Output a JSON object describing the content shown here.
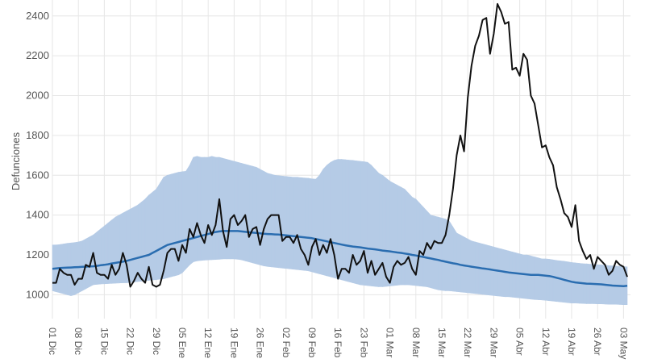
{
  "chart_data": {
    "type": "line",
    "y_label": "Defunciones",
    "categories": [
      "01 Dic",
      null,
      null,
      null,
      null,
      null,
      null,
      "08 Dic",
      null,
      null,
      null,
      null,
      null,
      null,
      "15 Dic",
      null,
      null,
      null,
      null,
      null,
      null,
      "22 Dic",
      null,
      null,
      null,
      null,
      null,
      null,
      "29 Dic",
      null,
      null,
      null,
      null,
      null,
      null,
      "05 Ene",
      null,
      null,
      null,
      null,
      null,
      null,
      "12 Ene",
      null,
      null,
      null,
      null,
      null,
      null,
      "19 Ene",
      null,
      null,
      null,
      null,
      null,
      null,
      "26 Ene",
      null,
      null,
      null,
      null,
      null,
      null,
      "02 Feb",
      null,
      null,
      null,
      null,
      null,
      null,
      "09 Feb",
      null,
      null,
      null,
      null,
      null,
      null,
      "16 Feb",
      null,
      null,
      null,
      null,
      null,
      null,
      "23 Feb",
      null,
      null,
      null,
      null,
      null,
      null,
      "01 Mar",
      null,
      null,
      null,
      null,
      null,
      null,
      "08 Mar",
      null,
      null,
      null,
      null,
      null,
      null,
      "15 Mar",
      null,
      null,
      null,
      null,
      null,
      null,
      "22 Mar",
      null,
      null,
      null,
      null,
      null,
      null,
      "29 Mar",
      null,
      null,
      null,
      null,
      null,
      null,
      "05 Abr",
      null,
      null,
      null,
      null,
      null,
      null,
      "12 Abr",
      null,
      null,
      null,
      null,
      null,
      null,
      "19 Abr",
      null,
      null,
      null,
      null,
      null,
      null,
      "26 Abr",
      null,
      null,
      null,
      null,
      null,
      null,
      "03 May",
      null
    ],
    "band": {
      "color": "#b5cbe6",
      "upper": [
        1250,
        1250,
        1252,
        1255,
        1258,
        1260,
        1262,
        1265,
        1270,
        1280,
        1290,
        1300,
        1315,
        1330,
        1345,
        1360,
        1375,
        1390,
        1400,
        1410,
        1420,
        1430,
        1440,
        1450,
        1465,
        1480,
        1500,
        1515,
        1530,
        1560,
        1590,
        1600,
        1605,
        1610,
        1615,
        1618,
        1620,
        1650,
        1690,
        1695,
        1690,
        1690,
        1690,
        1695,
        1690,
        1690,
        1685,
        1680,
        1675,
        1670,
        1665,
        1660,
        1655,
        1650,
        1645,
        1640,
        1630,
        1620,
        1610,
        1605,
        1600,
        1598,
        1596,
        1594,
        1592,
        1590,
        1590,
        1588,
        1586,
        1585,
        1582,
        1580,
        1600,
        1630,
        1650,
        1665,
        1675,
        1680,
        1680,
        1678,
        1676,
        1675,
        1672,
        1670,
        1668,
        1665,
        1650,
        1630,
        1610,
        1600,
        1585,
        1570,
        1560,
        1550,
        1540,
        1530,
        1510,
        1490,
        1480,
        1460,
        1440,
        1420,
        1400,
        1395,
        1390,
        1385,
        1380,
        1370,
        1340,
        1310,
        1300,
        1290,
        1280,
        1270,
        1265,
        1260,
        1255,
        1250,
        1245,
        1240,
        1235,
        1230,
        1225,
        1220,
        1215,
        1210,
        1205,
        1200,
        1200,
        1195,
        1190,
        1185,
        1180,
        1180,
        1178,
        1175,
        1172,
        1170,
        1168,
        1165,
        1162,
        1160,
        1158,
        1156,
        1155,
        1153,
        1152,
        1150,
        1150,
        1148,
        1146,
        1145,
        1144,
        1142,
        1141,
        1140
      ],
      "lower": [
        1020,
        1015,
        1010,
        1005,
        1000,
        995,
        1000,
        1010,
        1020,
        1030,
        1040,
        1050,
        1052,
        1054,
        1055,
        1056,
        1057,
        1058,
        1059,
        1060,
        1060,
        1062,
        1064,
        1066,
        1068,
        1070,
        1072,
        1074,
        1076,
        1078,
        1080,
        1085,
        1090,
        1095,
        1100,
        1110,
        1130,
        1150,
        1165,
        1170,
        1172,
        1174,
        1175,
        1176,
        1177,
        1178,
        1180,
        1180,
        1180,
        1180,
        1178,
        1175,
        1170,
        1165,
        1160,
        1155,
        1150,
        1145,
        1142,
        1140,
        1138,
        1136,
        1134,
        1132,
        1130,
        1128,
        1126,
        1124,
        1122,
        1120,
        1115,
        1110,
        1105,
        1100,
        1095,
        1090,
        1085,
        1080,
        1075,
        1070,
        1065,
        1060,
        1055,
        1050,
        1048,
        1046,
        1044,
        1042,
        1040,
        1040,
        1042,
        1044,
        1046,
        1048,
        1050,
        1050,
        1050,
        1048,
        1046,
        1044,
        1042,
        1040,
        1035,
        1030,
        1025,
        1022,
        1020,
        1020,
        1018,
        1016,
        1014,
        1012,
        1010,
        1008,
        1006,
        1004,
        1002,
        1000,
        998,
        996,
        994,
        992,
        990,
        990,
        988,
        986,
        984,
        982,
        980,
        978,
        976,
        975,
        974,
        972,
        970,
        968,
        966,
        964,
        962,
        960,
        958,
        958,
        957,
        956,
        955,
        955,
        955,
        954,
        954,
        953,
        952,
        952,
        952,
        951,
        950,
        950
      ]
    },
    "series": [
      {
        "color": "#2a6db0",
        "values": [
          1130,
          1132,
          1134,
          1135,
          1136,
          1137,
          1138,
          1139,
          1140,
          1141,
          1142,
          1143,
          1145,
          1148,
          1150,
          1153,
          1157,
          1160,
          1163,
          1166,
          1170,
          1175,
          1180,
          1185,
          1190,
          1195,
          1200,
          1210,
          1220,
          1230,
          1240,
          1250,
          1255,
          1260,
          1265,
          1270,
          1275,
          1280,
          1285,
          1290,
          1295,
          1300,
          1305,
          1310,
          1315,
          1318,
          1320,
          1320,
          1320,
          1320,
          1320,
          1318,
          1316,
          1314,
          1312,
          1310,
          1308,
          1306,
          1305,
          1304,
          1303,
          1302,
          1300,
          1298,
          1296,
          1294,
          1292,
          1290,
          1288,
          1286,
          1284,
          1280,
          1276,
          1272,
          1268,
          1264,
          1260,
          1256,
          1252,
          1248,
          1245,
          1242,
          1240,
          1238,
          1235,
          1232,
          1230,
          1228,
          1225,
          1222,
          1220,
          1218,
          1215,
          1212,
          1210,
          1207,
          1204,
          1200,
          1197,
          1193,
          1190,
          1186,
          1182,
          1178,
          1175,
          1170,
          1166,
          1162,
          1158,
          1155,
          1150,
          1147,
          1144,
          1141,
          1138,
          1135,
          1132,
          1130,
          1127,
          1124,
          1121,
          1118,
          1115,
          1112,
          1110,
          1108,
          1106,
          1104,
          1102,
          1100,
          1100,
          1100,
          1098,
          1096,
          1094,
          1090,
          1085,
          1080,
          1075,
          1070,
          1065,
          1062,
          1060,
          1058,
          1056,
          1055,
          1054,
          1053,
          1052,
          1050,
          1048,
          1046,
          1045,
          1044,
          1043,
          1045
        ]
      },
      {
        "color": "#111111",
        "values": [
          1060,
          1060,
          1130,
          1110,
          1100,
          1100,
          1050,
          1080,
          1080,
          1150,
          1140,
          1210,
          1110,
          1100,
          1100,
          1080,
          1150,
          1100,
          1130,
          1210,
          1150,
          1040,
          1070,
          1110,
          1080,
          1060,
          1140,
          1050,
          1040,
          1050,
          1120,
          1210,
          1230,
          1230,
          1170,
          1250,
          1210,
          1330,
          1290,
          1360,
          1300,
          1260,
          1350,
          1300,
          1350,
          1480,
          1320,
          1240,
          1380,
          1400,
          1350,
          1370,
          1400,
          1290,
          1330,
          1340,
          1250,
          1330,
          1380,
          1400,
          1400,
          1400,
          1270,
          1290,
          1290,
          1260,
          1300,
          1230,
          1200,
          1150,
          1240,
          1280,
          1200,
          1250,
          1210,
          1280,
          1200,
          1080,
          1130,
          1130,
          1110,
          1200,
          1150,
          1170,
          1220,
          1110,
          1170,
          1100,
          1130,
          1160,
          1090,
          1060,
          1140,
          1170,
          1150,
          1160,
          1190,
          1130,
          1100,
          1220,
          1200,
          1260,
          1230,
          1270,
          1260,
          1260,
          1300,
          1400,
          1530,
          1700,
          1800,
          1720,
          1990,
          2150,
          2250,
          2300,
          2380,
          2390,
          2210,
          2310,
          2460,
          2420,
          2360,
          2370,
          2130,
          2140,
          2100,
          2210,
          2180,
          2000,
          1960,
          1850,
          1740,
          1750,
          1690,
          1650,
          1540,
          1480,
          1410,
          1390,
          1340,
          1450,
          1270,
          1220,
          1180,
          1200,
          1130,
          1190,
          1170,
          1150,
          1100,
          1120,
          1170,
          1150,
          1140,
          1090
        ]
      }
    ],
    "ylim": [
      880,
      2480
    ],
    "yticks": [
      1000,
      1200,
      1400,
      1600,
      1800,
      2000,
      2200,
      2400
    ],
    "grid": true
  }
}
